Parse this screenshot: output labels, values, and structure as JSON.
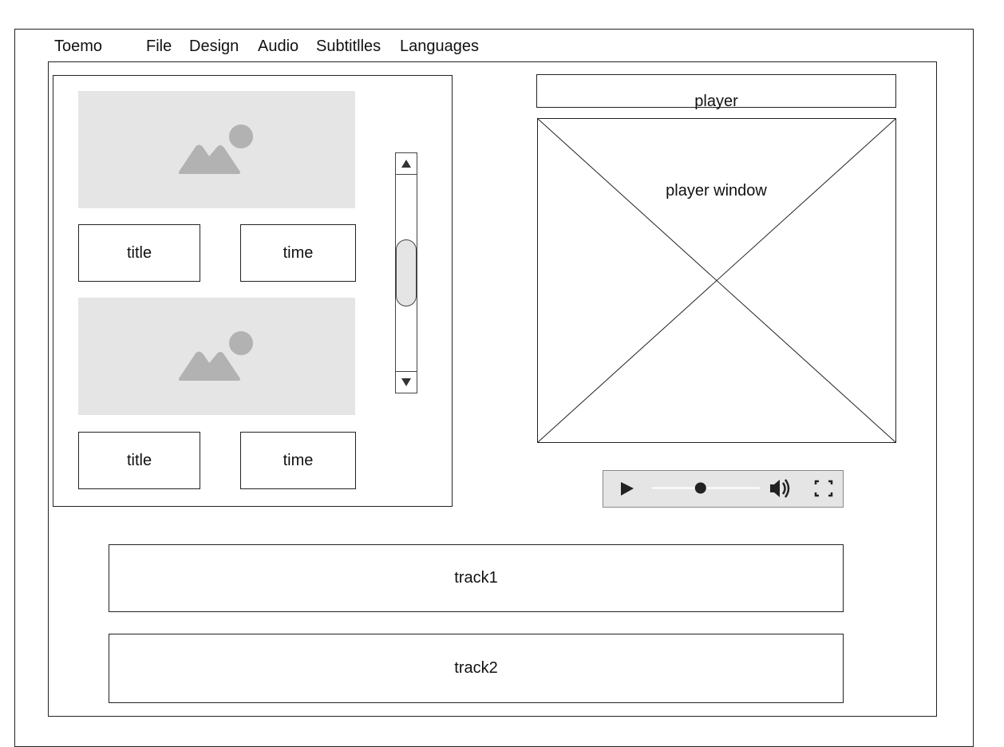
{
  "menubar": {
    "app_name": "Toemo",
    "items": [
      "File",
      "Design",
      "Audio",
      "Subtitlles",
      "Languages"
    ]
  },
  "media_list": {
    "items": [
      {
        "title_label": "title",
        "time_label": "time",
        "thumbnail_icon": "image-placeholder-icon"
      },
      {
        "title_label": "title",
        "time_label": "time",
        "thumbnail_icon": "image-placeholder-icon"
      }
    ],
    "scrollbar": {
      "up_icon": "triangle-up-icon",
      "down_icon": "triangle-down-icon"
    }
  },
  "player": {
    "header_label": "player",
    "window_label": "player window",
    "controls": {
      "play_icon": "play-icon",
      "volume_icon": "volume-icon",
      "fullscreen_icon": "fullscreen-icon",
      "seek_position": 0.45
    }
  },
  "tracks": [
    {
      "label": "track1"
    },
    {
      "label": "track2"
    }
  ],
  "colors": {
    "placeholder_fill": "#e5e5e5",
    "icon_gray": "#b2b2b2",
    "line": "#222222"
  }
}
